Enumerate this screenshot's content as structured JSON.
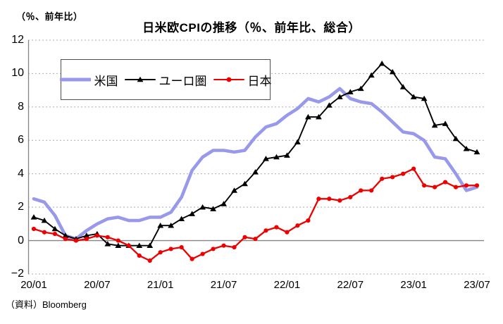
{
  "header": {
    "y_axis_unit_label": "（％、前年比）",
    "title": "日米欧CPIの推移（％、前年比、総合）"
  },
  "source_note": "（資料）Bloomberg",
  "colors": {
    "us_line": "#9999EB",
    "euro_line": "#000000",
    "japan_line": "#EE0000",
    "gridline": "#ABABAB",
    "axis_line": "#848484",
    "text": "#000000",
    "legend_border": "#4d4d4d",
    "background": "#FFFFFF"
  },
  "chart_data": {
    "type": "line",
    "title": "日米欧CPIの推移（％、前年比、総合）",
    "y_axis_unit": "（％、前年比）",
    "ylim": [
      -2,
      12
    ],
    "y_ticks": [
      12,
      10,
      8,
      6,
      4,
      2,
      0,
      -2
    ],
    "y_tick_labels": [
      "12",
      "10",
      "8",
      "6",
      "4",
      "2",
      "0",
      "−2"
    ],
    "x_frequency": "monthly",
    "x_start": "2020/01",
    "x_end": "2023/07",
    "x_tick_labels": [
      "20/01",
      "20/07",
      "21/01",
      "21/07",
      "22/01",
      "22/07",
      "23/01",
      "23/07"
    ],
    "x_tick_month_indices": [
      0,
      6,
      12,
      18,
      24,
      30,
      36,
      42
    ],
    "grid": "horizontal-dashed, zero-line solid",
    "legend_position": "top-left-inside-box",
    "series": [
      {
        "name": "米国",
        "color": "#9999EB",
        "marker": "none",
        "line_width": 4.6,
        "values": [
          2.5,
          2.3,
          1.5,
          0.3,
          0.1,
          0.6,
          1.0,
          1.3,
          1.4,
          1.2,
          1.2,
          1.4,
          1.4,
          1.7,
          2.6,
          4.2,
          5.0,
          5.4,
          5.4,
          5.3,
          5.4,
          6.2,
          6.8,
          7.0,
          7.5,
          7.9,
          8.5,
          8.3,
          8.6,
          9.1,
          8.5,
          8.3,
          8.2,
          7.7,
          7.1,
          6.5,
          6.4,
          6.0,
          5.0,
          4.9,
          4.0,
          3.0,
          3.2
        ]
      },
      {
        "name": "ユーロ圏",
        "color": "#000000",
        "marker": "triangle",
        "line_width": 1.9,
        "values": [
          1.4,
          1.2,
          0.7,
          0.3,
          0.1,
          0.3,
          0.4,
          -0.2,
          -0.3,
          -0.3,
          -0.3,
          -0.3,
          0.9,
          0.9,
          1.3,
          1.6,
          2.0,
          1.9,
          2.2,
          3.0,
          3.4,
          4.1,
          4.9,
          5.0,
          5.1,
          5.9,
          7.4,
          7.4,
          8.1,
          8.6,
          8.9,
          9.1,
          9.9,
          10.6,
          10.1,
          9.2,
          8.6,
          8.5,
          6.9,
          7.0,
          6.1,
          5.5,
          5.3
        ]
      },
      {
        "name": "日本",
        "color": "#EE0000",
        "marker": "circle",
        "line_width": 2.3,
        "values": [
          0.7,
          0.5,
          0.4,
          0.1,
          0.0,
          0.1,
          0.3,
          0.2,
          0.0,
          -0.3,
          -0.9,
          -1.2,
          -0.7,
          -0.5,
          -0.4,
          -1.1,
          -0.8,
          -0.5,
          -0.3,
          -0.4,
          0.2,
          0.1,
          0.6,
          0.8,
          0.5,
          0.9,
          1.2,
          2.5,
          2.5,
          2.4,
          2.6,
          3.0,
          3.0,
          3.7,
          3.8,
          4.0,
          4.3,
          3.3,
          3.2,
          3.5,
          3.2,
          3.3,
          3.3
        ]
      }
    ]
  }
}
